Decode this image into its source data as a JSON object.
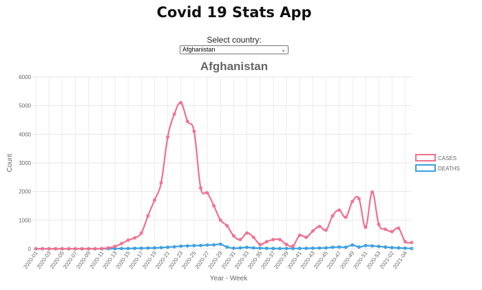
{
  "app": {
    "title": "Covid 19 Stats App"
  },
  "country_selector": {
    "label": "Select country:",
    "selected": "Afghanistan"
  },
  "chart_data": {
    "type": "line",
    "title": "Afghanistan",
    "xlabel": "Year - Week",
    "ylabel": "Count",
    "ylim": [
      0,
      6000
    ],
    "yticks": [
      0,
      1000,
      2000,
      3000,
      4000,
      5000,
      6000
    ],
    "grid": true,
    "legend_position": "right",
    "x": [
      "2020-01",
      "2020-02",
      "2020-03",
      "2020-04",
      "2020-05",
      "2020-06",
      "2020-07",
      "2020-08",
      "2020-09",
      "2020-10",
      "2020-11",
      "2020-12",
      "2020-13",
      "2020-14",
      "2020-15",
      "2020-16",
      "2020-17",
      "2020-18",
      "2020-19",
      "2020-20",
      "2020-21",
      "2020-22",
      "2020-23",
      "2020-24",
      "2020-25",
      "2020-26",
      "2020-27",
      "2020-28",
      "2020-29",
      "2020-30",
      "2020-31",
      "2020-32",
      "2020-33",
      "2020-34",
      "2020-35",
      "2020-36",
      "2020-37",
      "2020-38",
      "2020-39",
      "2020-40",
      "2020-41",
      "2020-42",
      "2020-43",
      "2020-44",
      "2020-45",
      "2020-46",
      "2020-47",
      "2020-48",
      "2020-49",
      "2020-50",
      "2020-51",
      "2020-52",
      "2020-53",
      "2021-01",
      "2021-02",
      "2021-03",
      "2021-04",
      "2021-05"
    ],
    "x_tick_labels": [
      "2020-01",
      "2020-03",
      "2020-05",
      "2020-07",
      "2020-09",
      "2020-11",
      "2020-13",
      "2020-15",
      "2020-17",
      "2020-19",
      "2020-21",
      "2020-23",
      "2020-25",
      "2020-27",
      "2020-29",
      "2020-31",
      "2020-33",
      "2020-35",
      "2020-37",
      "2020-39",
      "2020-41",
      "2020-43",
      "2020-45",
      "2020-47",
      "2020-49",
      "2020-51",
      "2020-53",
      "2021-02",
      "2021-04"
    ],
    "series": [
      {
        "name": "CASES",
        "color": "#f06f8e",
        "values": [
          0,
          0,
          0,
          0,
          0,
          0,
          0,
          0,
          0,
          1,
          5,
          30,
          80,
          180,
          300,
          380,
          550,
          1150,
          1700,
          2300,
          3900,
          4700,
          5100,
          4450,
          4100,
          2120,
          1950,
          1500,
          1000,
          800,
          450,
          320,
          550,
          400,
          150,
          250,
          320,
          320,
          150,
          100,
          470,
          400,
          620,
          780,
          650,
          1150,
          1350,
          1100,
          1650,
          1750,
          750,
          1980,
          850,
          680,
          600,
          720,
          250,
          220
        ]
      },
      {
        "name": "DEATHS",
        "color": "#3a9ee0",
        "values": [
          0,
          0,
          0,
          0,
          0,
          0,
          0,
          0,
          0,
          0,
          0,
          2,
          5,
          8,
          10,
          15,
          20,
          25,
          30,
          40,
          55,
          70,
          90,
          100,
          110,
          115,
          130,
          135,
          160,
          60,
          20,
          30,
          50,
          30,
          20,
          15,
          10,
          10,
          10,
          10,
          12,
          15,
          20,
          25,
          30,
          50,
          60,
          55,
          130,
          60,
          110,
          100,
          80,
          60,
          40,
          30,
          20,
          10
        ]
      }
    ]
  }
}
